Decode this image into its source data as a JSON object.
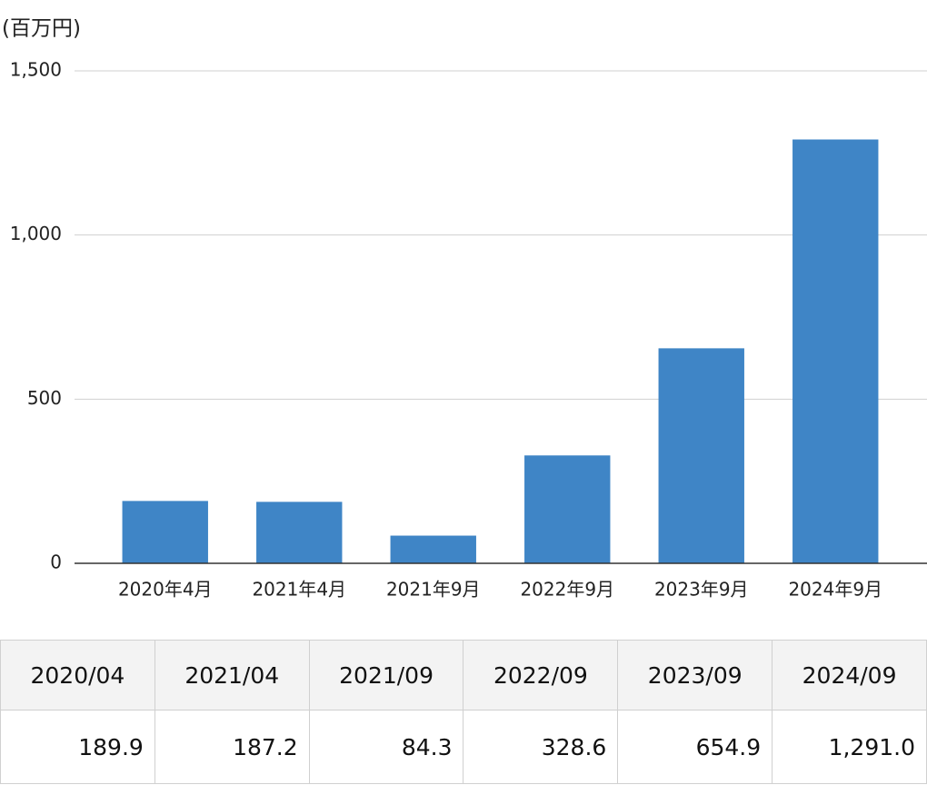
{
  "chart_data": {
    "type": "bar",
    "y_label": "(百万円)",
    "categories": [
      "2020年4月",
      "2021年4月",
      "2021年9月",
      "2022年9月",
      "2023年9月",
      "2024年9月"
    ],
    "values": [
      189.9,
      187.2,
      84.3,
      328.6,
      654.9,
      1291.0
    ],
    "value_labels": [
      "189.9",
      "187.2",
      "84.3",
      "328.6",
      "654.9",
      "1,291.0"
    ],
    "color": "#3f85c6",
    "ylim": [
      0,
      1500
    ],
    "yticks": [
      0,
      500,
      {
        "value": 1000,
        "label": "1,000"
      },
      {
        "value": 1500,
        "label": "1,500"
      }
    ],
    "grid": true
  },
  "table": {
    "header": [
      "2020/04",
      "2021/04",
      "2021/09",
      "2022/09",
      "2023/09",
      "2024/09"
    ]
  }
}
